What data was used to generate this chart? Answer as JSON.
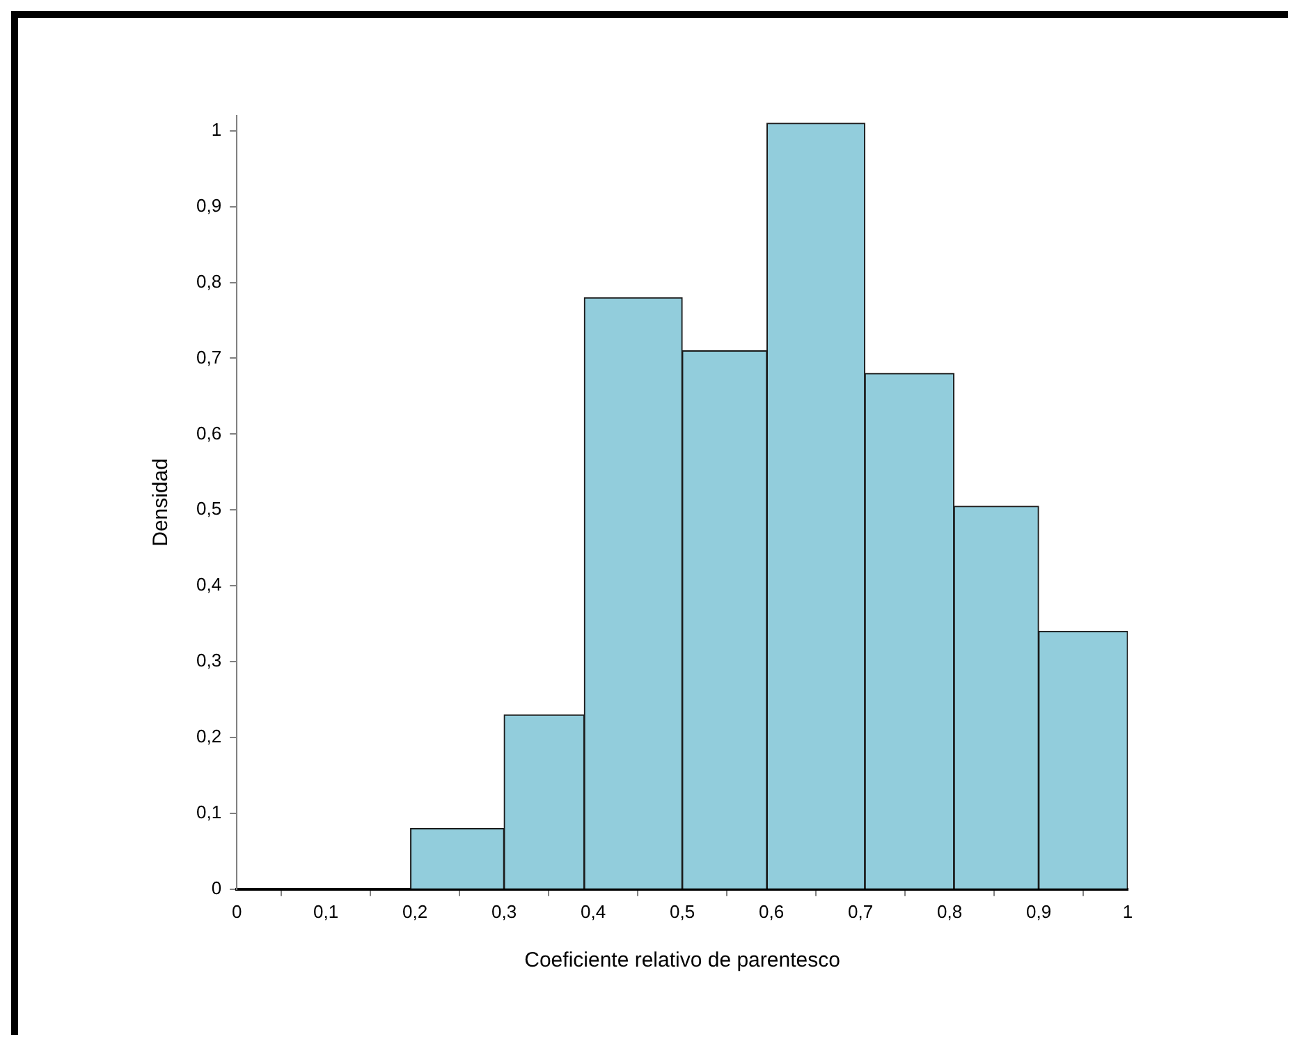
{
  "chart_data": {
    "type": "histogram",
    "xlabel": "Coeficiente relativo de parentesco",
    "ylabel": "Densidad",
    "bins": [
      0.195,
      0.3,
      0.39,
      0.5,
      0.595,
      0.705,
      0.805,
      0.9,
      1
    ],
    "values": [
      0.08,
      0.23,
      0.78,
      0.71,
      1.01,
      0.68,
      0.505,
      0.34
    ],
    "color": "#92cddc",
    "xlim": [
      0,
      1
    ],
    "xticks": [
      {
        "value": 0,
        "label": "0"
      },
      {
        "value": 0.1,
        "label": "0,1"
      },
      {
        "value": 0.2,
        "label": "0,2"
      },
      {
        "value": 0.3,
        "label": "0,3"
      },
      {
        "value": 0.4,
        "label": "0,4"
      },
      {
        "value": 0.5,
        "label": "0,5"
      },
      {
        "value": 0.6,
        "label": "0,6"
      },
      {
        "value": 0.7,
        "label": "0,7"
      },
      {
        "value": 0.8,
        "label": "0,8"
      },
      {
        "value": 0.9,
        "label": "0,9"
      },
      {
        "value": 1,
        "label": "1"
      }
    ],
    "ylim": [
      0,
      1.02
    ],
    "yticks": [
      {
        "value": 0,
        "label": "0"
      },
      {
        "value": 0.1,
        "label": "0,1"
      },
      {
        "value": 0.2,
        "label": "0,2"
      },
      {
        "value": 0.3,
        "label": "0,3"
      },
      {
        "value": 0.4,
        "label": "0,4"
      },
      {
        "value": 0.5,
        "label": "0,5"
      },
      {
        "value": 0.6,
        "label": "0,6"
      },
      {
        "value": 0.7,
        "label": "0,7"
      },
      {
        "value": 0.8,
        "label": "0,8"
      },
      {
        "value": 0.9,
        "label": "0,9"
      },
      {
        "value": 1,
        "label": "1"
      }
    ],
    "grid": false,
    "legend": false
  }
}
